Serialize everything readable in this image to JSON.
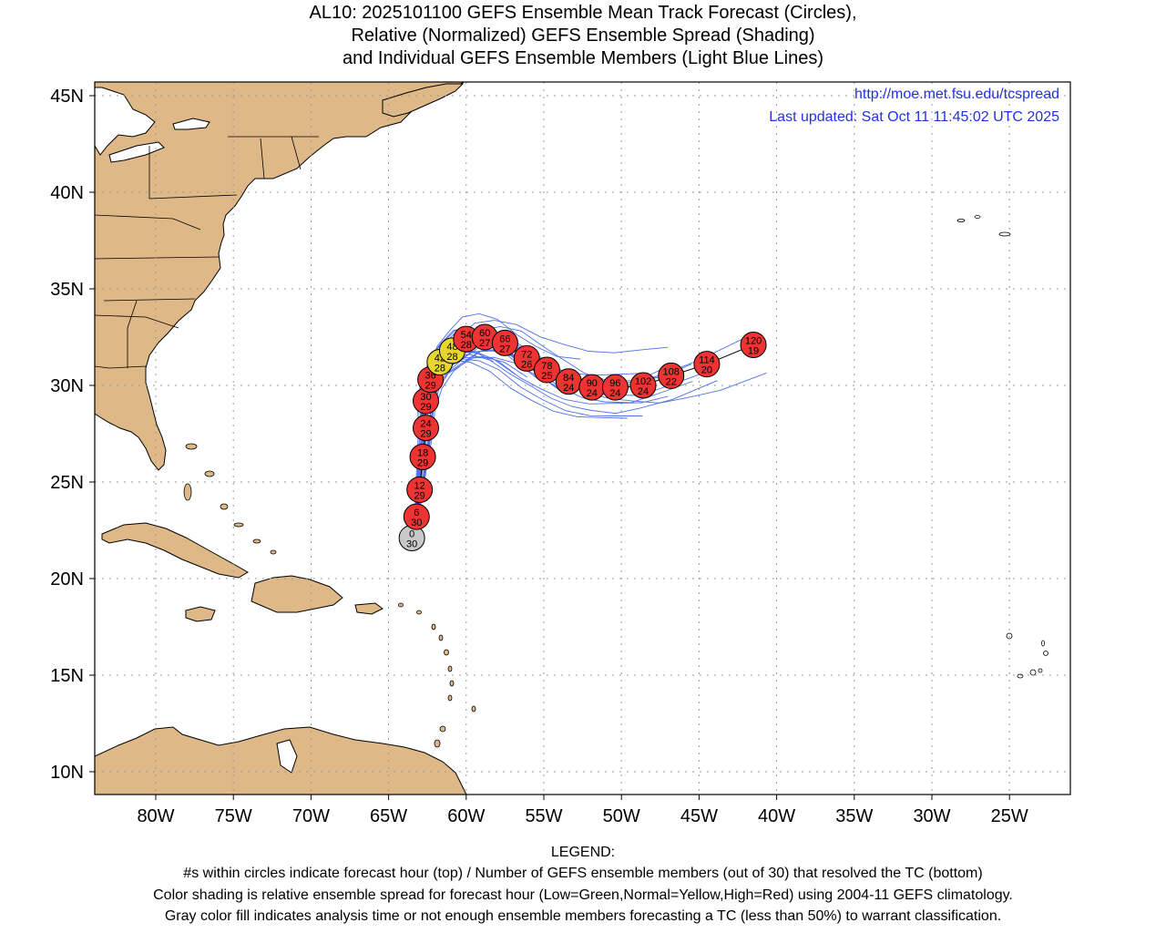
{
  "title": {
    "line1": "AL10: 2025101100 GEFS Ensemble Mean Track Forecast (Circles),",
    "line2": "Relative (Normalized) GEFS Ensemble Spread (Shading)",
    "line3": "and Individual GEFS Ensemble Members (Light Blue Lines)"
  },
  "map_info": {
    "url": "http://moe.met.fsu.edu/tcspread",
    "updated": "Last updated: Sat Oct 11 11:45:02 UTC 2025"
  },
  "axes": {
    "lat_labels": [
      "45N",
      "40N",
      "35N",
      "30N",
      "25N",
      "20N",
      "15N",
      "10N"
    ],
    "lon_labels": [
      "80W",
      "75W",
      "70W",
      "65W",
      "60W",
      "55W",
      "50W",
      "45W",
      "40W",
      "35W",
      "30W",
      "25W"
    ]
  },
  "colors": {
    "land": "#deb887",
    "ocean": "#ffffff",
    "member_tracks": "#4f6fe8",
    "spread_low": "#33cc33",
    "spread_normal": "#e8d630",
    "spread_high": "#ee3333",
    "analysis_gray": "#c8c8c8",
    "link_text": "#2233dd"
  },
  "track": [
    {
      "hour": "0",
      "members": "30",
      "lat": 22.1,
      "lon": -63.5,
      "spread": "gray"
    },
    {
      "hour": "6",
      "members": "30",
      "lat": 23.2,
      "lon": -63.2,
      "spread": "high"
    },
    {
      "hour": "12",
      "members": "29",
      "lat": 24.6,
      "lon": -63.0,
      "spread": "high"
    },
    {
      "hour": "18",
      "members": "29",
      "lat": 26.3,
      "lon": -62.8,
      "spread": "high"
    },
    {
      "hour": "24",
      "members": "29",
      "lat": 27.8,
      "lon": -62.6,
      "spread": "high"
    },
    {
      "hour": "30",
      "members": "29",
      "lat": 29.2,
      "lon": -62.6,
      "spread": "high"
    },
    {
      "hour": "36",
      "members": "29",
      "lat": 30.3,
      "lon": -62.3,
      "spread": "high"
    },
    {
      "hour": "42",
      "members": "28",
      "lat": 31.2,
      "lon": -61.7,
      "spread": "normal"
    },
    {
      "hour": "48",
      "members": "28",
      "lat": 31.8,
      "lon": -60.9,
      "spread": "normal"
    },
    {
      "hour": "54",
      "members": "28",
      "lat": 32.4,
      "lon": -60.0,
      "spread": "high"
    },
    {
      "hour": "60",
      "members": "27",
      "lat": 32.5,
      "lon": -58.8,
      "spread": "high"
    },
    {
      "hour": "66",
      "members": "27",
      "lat": 32.2,
      "lon": -57.5,
      "spread": "high"
    },
    {
      "hour": "72",
      "members": "26",
      "lat": 31.4,
      "lon": -56.1,
      "spread": "high"
    },
    {
      "hour": "78",
      "members": "25",
      "lat": 30.8,
      "lon": -54.8,
      "spread": "high"
    },
    {
      "hour": "84",
      "members": "24",
      "lat": 30.2,
      "lon": -53.4,
      "spread": "high"
    },
    {
      "hour": "90",
      "members": "24",
      "lat": 29.9,
      "lon": -51.9,
      "spread": "high"
    },
    {
      "hour": "96",
      "members": "24",
      "lat": 29.9,
      "lon": -50.4,
      "spread": "high"
    },
    {
      "hour": "102",
      "members": "24",
      "lat": 30.0,
      "lon": -48.6,
      "spread": "high"
    },
    {
      "hour": "108",
      "members": "22",
      "lat": 30.5,
      "lon": -46.8,
      "spread": "high"
    },
    {
      "hour": "114",
      "members": "20",
      "lat": 31.1,
      "lon": -44.5,
      "spread": "high"
    },
    {
      "hour": "120",
      "members": "19",
      "lat": 32.1,
      "lon": -41.5,
      "spread": "high"
    }
  ],
  "legend": {
    "heading": "LEGEND:",
    "line1": "#s within circles indicate forecast hour (top) / Number of GEFS ensemble members (out of 30) that resolved the TC (bottom)",
    "line2": "Color shading is relative ensemble spread for forecast hour (Low=Green,Normal=Yellow,High=Red) using 2004-11 GEFS climatology.",
    "line3": "Gray color fill indicates analysis time or not enough ensemble members forecasting a TC (less than 50%) to warrant classification."
  }
}
